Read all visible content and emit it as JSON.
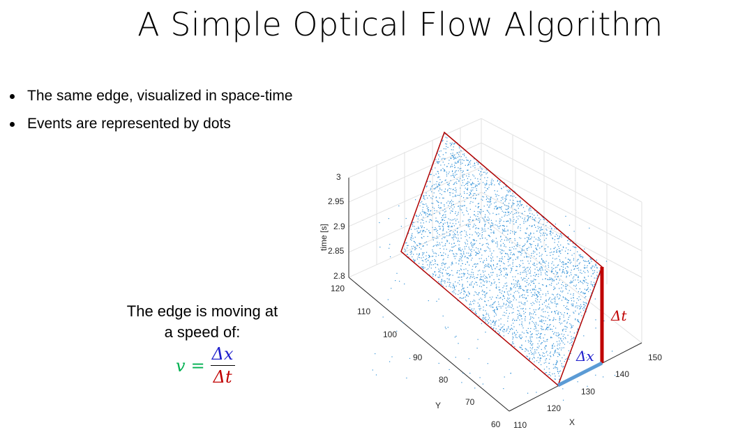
{
  "slide": {
    "title": "A Simple Optical Flow Algorithm",
    "bullets": [
      "The same edge, visualized in space-time",
      "Events are represented by dots"
    ],
    "speed_text_line1": "The edge is moving at",
    "speed_text_line2": "a speed of:",
    "formula": {
      "lhs": "v",
      "eq": "=",
      "numerator": "Δx",
      "denominator": "Δt"
    }
  },
  "plot": {
    "zlabel": "time [s]",
    "ylabel": "Y",
    "xlabel": "X",
    "zticks": [
      "3",
      "2.95",
      "2.9",
      "2.85",
      "2.8"
    ],
    "yticks": [
      "120",
      "110",
      "100",
      "90",
      "80",
      "70",
      "60"
    ],
    "xticks": [
      "110",
      "120",
      "130",
      "140",
      "150"
    ],
    "delta_t_label": "Δt",
    "delta_x_label": "Δx",
    "colors": {
      "dots": "#2e8fd6",
      "plane": "#b00000",
      "delta_t": "#c00000",
      "delta_x": "#5b9bd5"
    }
  }
}
